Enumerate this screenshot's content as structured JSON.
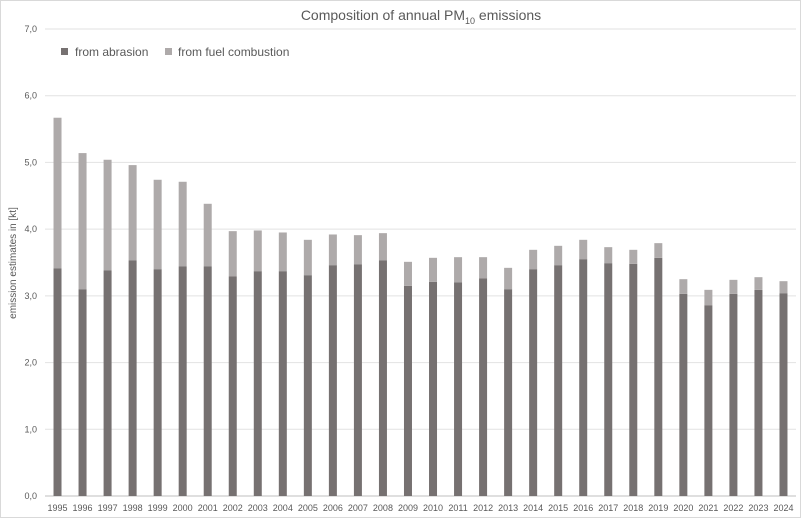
{
  "chart_data": {
    "type": "bar",
    "stacked": true,
    "title": "Composition of annual PM",
    "title_subscript": "10",
    "title_suffix": " emissions",
    "xlabel": "",
    "ylabel": "emission estimates in [kt]",
    "ylim": [
      0,
      7
    ],
    "yticks": [
      "0,0",
      "1,0",
      "2,0",
      "3,0",
      "4,0",
      "5,0",
      "6,0",
      "7,0"
    ],
    "grid": true,
    "legend_position": "top-left",
    "categories": [
      "1995",
      "1996",
      "1997",
      "1998",
      "1999",
      "2000",
      "2001",
      "2002",
      "2003",
      "2004",
      "2005",
      "2006",
      "2007",
      "2008",
      "2009",
      "2010",
      "2011",
      "2012",
      "2013",
      "2014",
      "2015",
      "2016",
      "2017",
      "2018",
      "2019",
      "2020",
      "2021",
      "2022",
      "2023",
      "2024"
    ],
    "series": [
      {
        "name": "from abrasion",
        "color": "#767171",
        "values": [
          3.41,
          3.1,
          3.38,
          3.53,
          3.4,
          3.44,
          3.44,
          3.29,
          3.37,
          3.37,
          3.31,
          3.46,
          3.47,
          3.53,
          3.15,
          3.21,
          3.2,
          3.26,
          3.1,
          3.4,
          3.46,
          3.55,
          3.49,
          3.48,
          3.57,
          3.03,
          2.86,
          3.03,
          3.09,
          3.04
        ]
      },
      {
        "name": "from fuel combustion",
        "color": "#AEAAAA",
        "values": [
          2.26,
          2.04,
          1.66,
          1.43,
          1.34,
          1.27,
          0.94,
          0.68,
          0.61,
          0.58,
          0.53,
          0.46,
          0.44,
          0.41,
          0.36,
          0.36,
          0.38,
          0.32,
          0.32,
          0.29,
          0.29,
          0.29,
          0.24,
          0.21,
          0.22,
          0.22,
          0.23,
          0.21,
          0.19,
          0.18
        ]
      }
    ]
  }
}
